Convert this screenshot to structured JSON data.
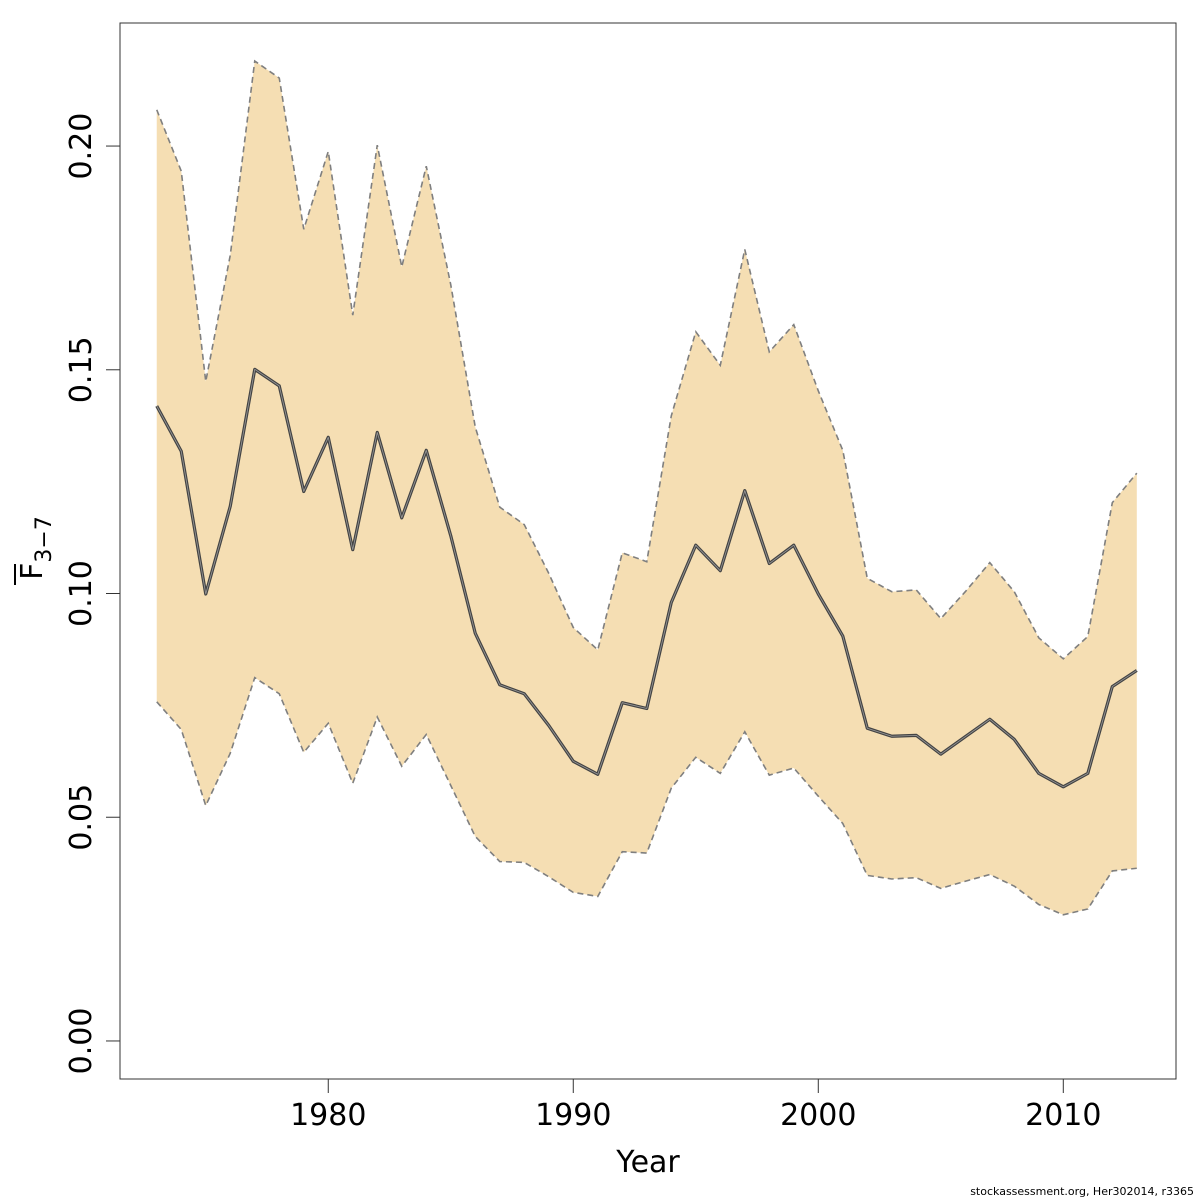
{
  "chart_data": {
    "type": "area",
    "title": "",
    "xlabel": "Year",
    "ylabel": {
      "base": "F",
      "subscript": "3−7"
    },
    "xlim": [
      1971.5,
      2014.6
    ],
    "ylim": [
      -0.0085,
      0.2275
    ],
    "xticks": [
      1980,
      1990,
      2000,
      2010
    ],
    "yticks": [
      "0.00",
      "0.05",
      "0.10",
      "0.15",
      "0.20"
    ],
    "grid": false,
    "legend": "none",
    "x": [
      1973,
      1974,
      1975,
      1976,
      1977,
      1978,
      1979,
      1980,
      1981,
      1982,
      1983,
      1984,
      1985,
      1986,
      1987,
      1988,
      1989,
      1990,
      1991,
      1992,
      1993,
      1994,
      1995,
      1996,
      1997,
      1998,
      1999,
      2000,
      2001,
      2002,
      2003,
      2004,
      2005,
      2006,
      2007,
      2008,
      2009,
      2010,
      2011,
      2012,
      2013
    ],
    "series": [
      {
        "role": "estimate",
        "values": [
          0.1419,
          0.1318,
          0.0999,
          0.1195,
          0.1501,
          0.1464,
          0.1228,
          0.1349,
          0.1098,
          0.136,
          0.1169,
          0.132,
          0.1129,
          0.0911,
          0.0796,
          0.0776,
          0.0705,
          0.0625,
          0.0596,
          0.0756,
          0.0743,
          0.098,
          0.1108,
          0.1051,
          0.123,
          0.1067,
          0.1108,
          0.0999,
          0.0905,
          0.0699,
          0.0681,
          0.0683,
          0.0641,
          0.068,
          0.0719,
          0.0674,
          0.0598,
          0.0568,
          0.0598,
          0.0792,
          0.0828
        ]
      },
      {
        "role": "upper",
        "values": [
          0.2081,
          0.1944,
          0.1474,
          0.1756,
          0.219,
          0.2152,
          0.1814,
          0.1988,
          0.1622,
          0.2002,
          0.173,
          0.1955,
          0.169,
          0.1372,
          0.1193,
          0.1154,
          0.1045,
          0.0924,
          0.0874,
          0.1091,
          0.1071,
          0.1397,
          0.1585,
          0.151,
          0.1769,
          0.154,
          0.1601,
          0.1453,
          0.132,
          0.1034,
          0.1004,
          0.1008,
          0.0944,
          0.1004,
          0.1069,
          0.1004,
          0.0901,
          0.0854,
          0.0904,
          0.1203,
          0.1269
        ]
      },
      {
        "role": "lower",
        "values": [
          0.0758,
          0.0696,
          0.0526,
          0.0643,
          0.0812,
          0.0776,
          0.0645,
          0.071,
          0.0576,
          0.0724,
          0.0614,
          0.0685,
          0.0571,
          0.0457,
          0.0401,
          0.0399,
          0.0367,
          0.0332,
          0.0323,
          0.0423,
          0.042,
          0.0565,
          0.0634,
          0.0598,
          0.0691,
          0.0594,
          0.061,
          0.0547,
          0.0486,
          0.037,
          0.0362,
          0.0365,
          0.0341,
          0.0357,
          0.0372,
          0.0346,
          0.0305,
          0.0282,
          0.0295,
          0.038,
          0.0386
        ]
      }
    ],
    "colors": {
      "band": "#f5deb3",
      "line": "#444444",
      "bound": "#7f7f7f"
    }
  },
  "credit": "stockassessment.org, Her302014, r3365"
}
